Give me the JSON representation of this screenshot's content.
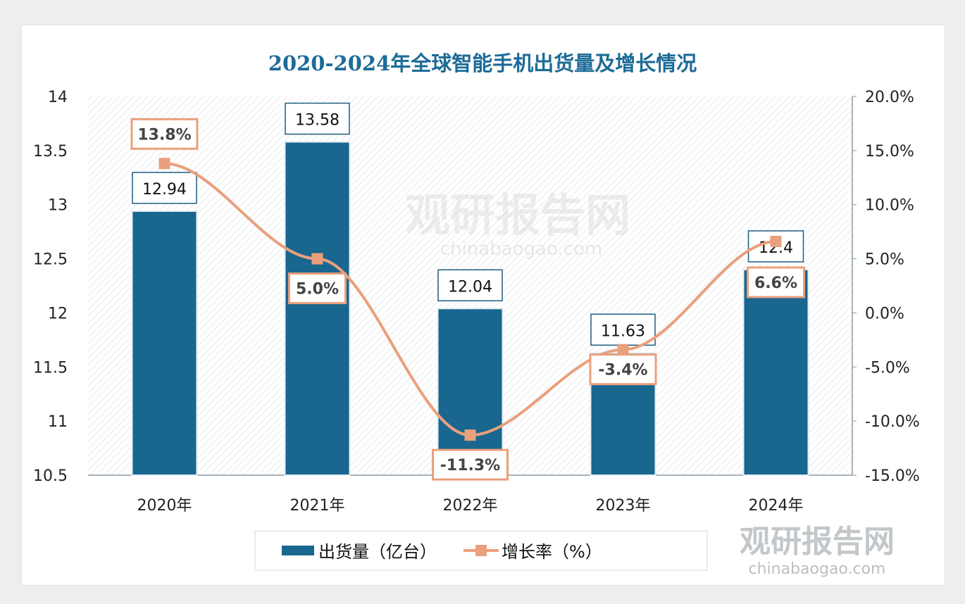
{
  "chart_data": {
    "type": "bar+line",
    "title": "2020-2024年全球智能手机出货量及增长情况",
    "categories": [
      "2020年",
      "2021年",
      "2022年",
      "2023年",
      "2024年"
    ],
    "series": [
      {
        "name": "出货量（亿台）",
        "type": "bar",
        "axis": "left",
        "values": [
          12.94,
          13.58,
          12.04,
          11.63,
          12.4
        ],
        "labels": [
          "12.94",
          "13.58",
          "12.04",
          "11.63",
          "12.4"
        ],
        "color": "#19668f"
      },
      {
        "name": "增长率（%）",
        "type": "line",
        "axis": "right",
        "values": [
          13.8,
          5.0,
          -11.3,
          -3.4,
          6.6
        ],
        "labels": [
          "13.8%",
          "5.0%",
          "-11.3%",
          "-3.4%",
          "6.6%"
        ],
        "color": "#e9a07c"
      }
    ],
    "y_left": {
      "range": [
        10.5,
        14
      ],
      "ticks": [
        "10.5",
        "11",
        "11.5",
        "12",
        "12.5",
        "13",
        "13.5",
        "14"
      ]
    },
    "y_right": {
      "range": [
        -15,
        20
      ],
      "ticks": [
        "-15.0%",
        "-10.0%",
        "-5.0%",
        "0.0%",
        "5.0%",
        "10.0%",
        "15.0%",
        "20.0%"
      ]
    },
    "grid": false,
    "legend_position": "bottom",
    "watermark": {
      "text": "观研报告网",
      "url_text": "chinabaogao.com"
    }
  }
}
